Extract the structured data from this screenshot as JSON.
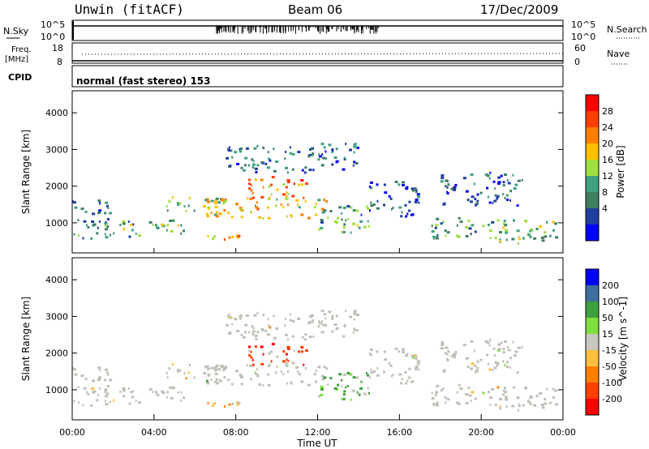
{
  "header": {
    "station": "Unwin (fitACF)",
    "beam": "Beam 06",
    "date": "17/Dec/2009"
  },
  "noise_panel": {
    "left_label": "N.Sky",
    "right_label": "N.Search",
    "left_ticks": [
      "10^5",
      "10^0"
    ],
    "right_ticks": [
      "10^5",
      "10^0"
    ]
  },
  "freq_panel": {
    "left_label_1": "Freq.",
    "left_label_2": "[MHz]",
    "right_label": "Nave",
    "left_ticks": [
      "18",
      "8"
    ],
    "right_ticks": [
      "60",
      "0"
    ]
  },
  "cpid": {
    "label": "CPID",
    "value": "normal (fast stereo) 153"
  },
  "colors": {
    "power_scale": [
      "#0000ff",
      "#1f3fa0",
      "#3f7f5f",
      "#3fa07f",
      "#9fdf3f",
      "#ffc000",
      "#ff7f00",
      "#ff3f00",
      "#ff0000"
    ],
    "velocity_scale": [
      "#ff0000",
      "#ff4000",
      "#ff8000",
      "#ffbf3f",
      "#c8c8c0",
      "#7fdf3f",
      "#3f9f3f",
      "#3f6f9f",
      "#0000ff"
    ],
    "ground_scatter": "#c0c0b8"
  },
  "chart_data": [
    {
      "type": "heatmap",
      "name": "power",
      "ylabel": "Slant Range [km]",
      "xlim": [
        0,
        24
      ],
      "ylim": [
        180,
        4600
      ],
      "yticks": [
        "1000",
        "2000",
        "3000",
        "4000"
      ],
      "colorbar_label": "Power [dB]",
      "colorbar_ticks": [
        "28",
        "24",
        "20",
        "16",
        "12",
        "8",
        "4"
      ],
      "colorbar_range": [
        0,
        32
      ]
    },
    {
      "type": "heatmap",
      "name": "velocity",
      "ylabel": "Slant Range [km]",
      "xlabel": "Time UT",
      "xlim": [
        0,
        24
      ],
      "ylim": [
        180,
        4600
      ],
      "yticks": [
        "1000",
        "2000",
        "3000",
        "4000"
      ],
      "xticks": [
        "00:00",
        "04:00",
        "08:00",
        "12:00",
        "16:00",
        "20:00",
        "00:00"
      ],
      "colorbar_label": "Velocity [m s^-1]",
      "colorbar_ticks": [
        "200",
        "100",
        "50",
        "15",
        "-15",
        "-50",
        "-100",
        "-200"
      ],
      "colorbar_range": [
        -250,
        250
      ]
    }
  ]
}
